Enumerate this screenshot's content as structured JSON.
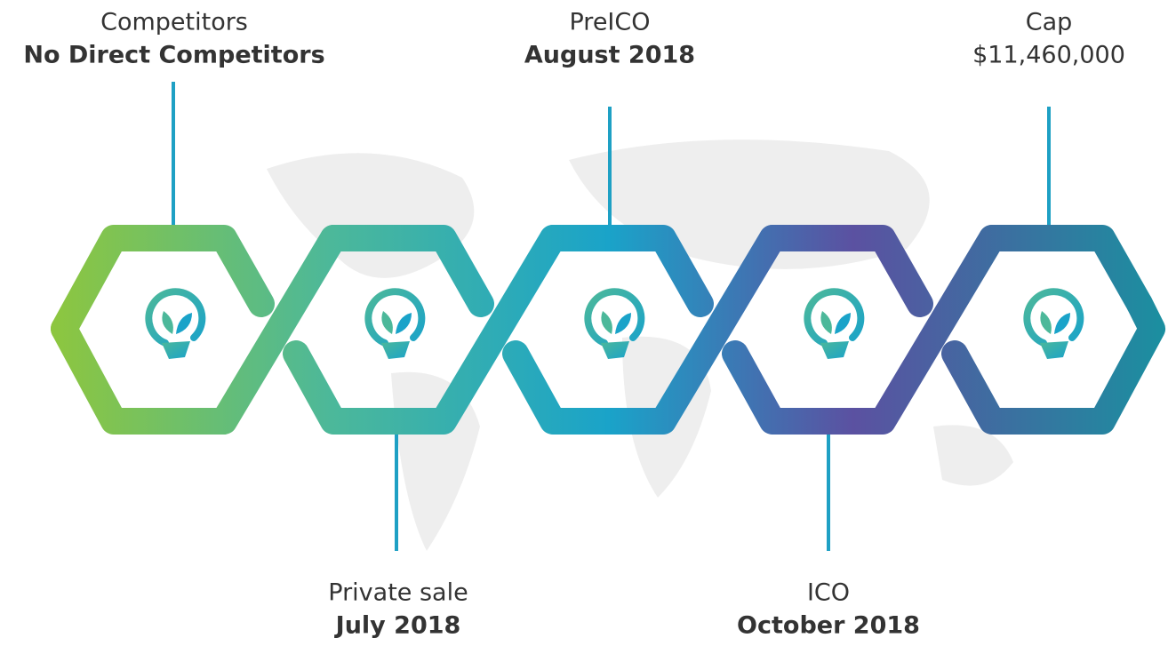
{
  "items": [
    {
      "label": "Competitors",
      "value": "No Direct Competitors"
    },
    {
      "label": "Private sale",
      "value": "July 2018"
    },
    {
      "label": "PreICO",
      "value": "August 2018"
    },
    {
      "label": "ICO",
      "value": "October 2018"
    },
    {
      "label": "Cap",
      "value": "$11,460,000"
    }
  ]
}
